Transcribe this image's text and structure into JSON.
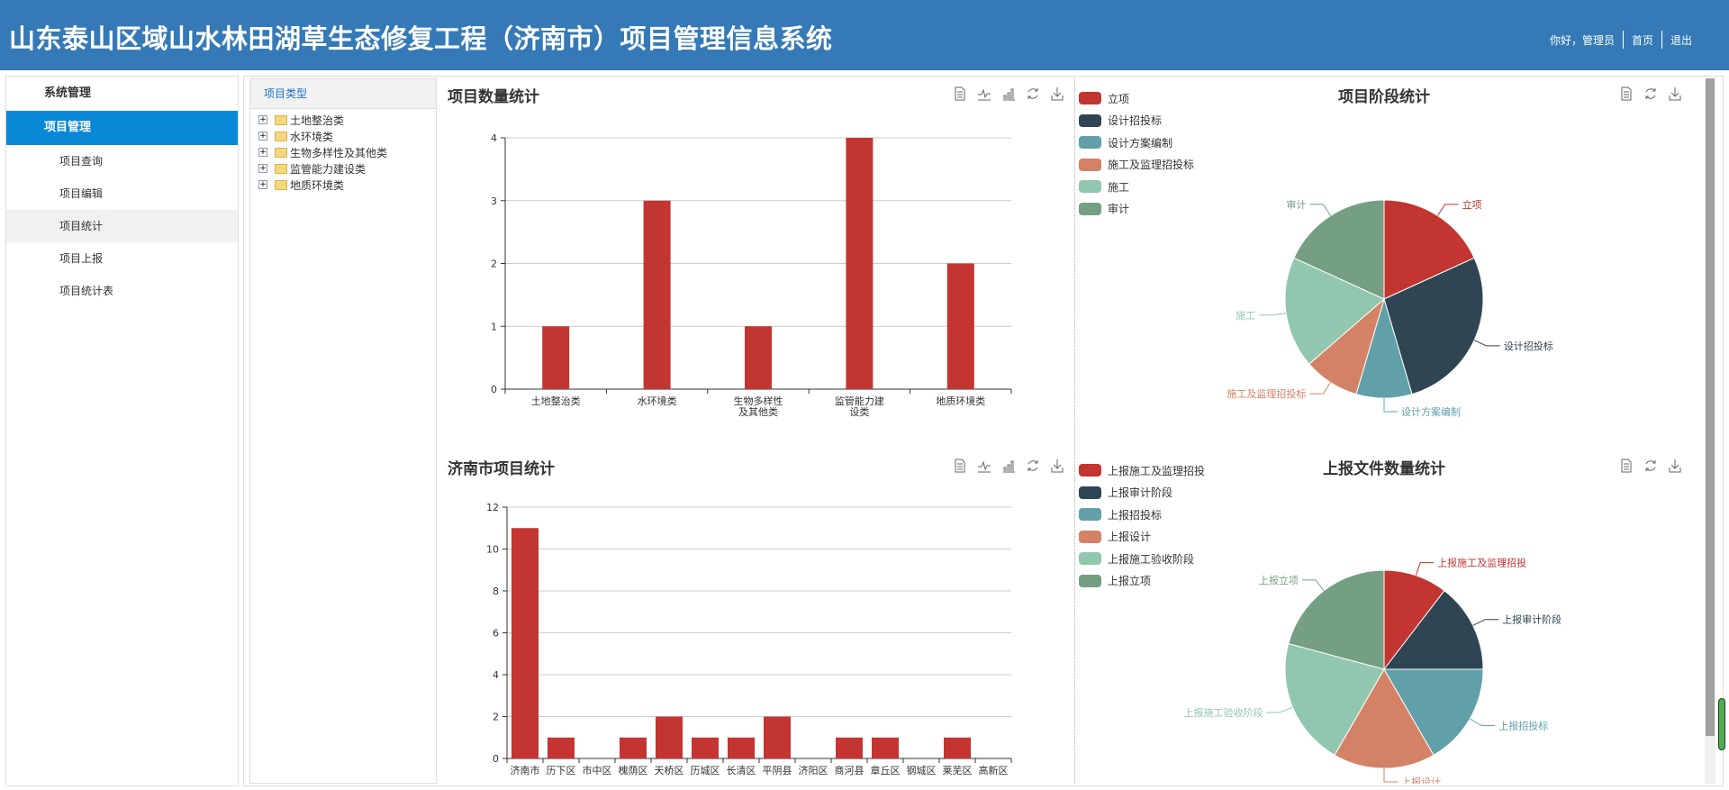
{
  "header": {
    "title": "山东泰山区域山水林田湖草生态修复工程（济南市）项目管理信息系统",
    "greeting": "你好，管理员",
    "home": "首页",
    "logout": "退出"
  },
  "sidebar": {
    "menus": [
      {
        "label": "系统管理"
      },
      {
        "label": "项目管理"
      }
    ],
    "sub_items": [
      {
        "label": "项目查询"
      },
      {
        "label": "项目编辑"
      },
      {
        "label": "项目统计"
      },
      {
        "label": "项目上报"
      },
      {
        "label": "项目统计表"
      }
    ]
  },
  "tree": {
    "title": "项目类型",
    "nodes": [
      "土地整治类",
      "水环境类",
      "生物多样性及其他类",
      "监管能力建设类",
      "地质环境类"
    ]
  },
  "colors": {
    "bar": "#c23531",
    "palette": [
      "#c23531",
      "#2f4554",
      "#61a0a8",
      "#d48265",
      "#91c7ae",
      "#749f83"
    ]
  },
  "toolbox_icons": [
    "data-view-icon",
    "line-chart-icon",
    "bar-chart-icon",
    "restore-icon",
    "save-image-icon"
  ],
  "chart_data": [
    {
      "type": "bar",
      "title": "项目数量统计",
      "categories": [
        "土地整治类",
        "水环境类",
        "生物多样性\n及其他类",
        "监管能力建\n设类",
        "地质环境类"
      ],
      "values": [
        1,
        3,
        1,
        4,
        2
      ],
      "ylim": [
        0,
        4
      ],
      "yticks": [
        0,
        1,
        2,
        3,
        4
      ],
      "grid": true
    },
    {
      "type": "pie",
      "title": "项目阶段统计",
      "legend": "top-left",
      "categories": [
        "立项",
        "设计招投标",
        "设计方案编制",
        "施工及监理招投标",
        "施工",
        "审计"
      ],
      "values": [
        2,
        3,
        1,
        1,
        2,
        2
      ]
    },
    {
      "type": "bar",
      "title": "济南市项目统计",
      "categories": [
        "济南市",
        "历下区",
        "市中区",
        "槐荫区",
        "天桥区",
        "历城区",
        "长清区",
        "平阴县",
        "济阳区",
        "商河县",
        "章丘区",
        "钢城区",
        "莱芜区",
        "高新区"
      ],
      "values": [
        11,
        1,
        0,
        1,
        2,
        1,
        1,
        2,
        0,
        1,
        1,
        0,
        1,
        0
      ],
      "ylim": [
        0,
        12
      ],
      "yticks": [
        0,
        2,
        4,
        6,
        8,
        10,
        12
      ],
      "grid": true
    },
    {
      "type": "pie",
      "title": "上报文件数量统计",
      "legend": "top-left",
      "categories": [
        "上报施工及监理招投",
        "上报审计阶段",
        "上报招投标",
        "上报设计",
        "上报施工验收阶段",
        "上报立项"
      ],
      "values": [
        5,
        7,
        8,
        8,
        10,
        10
      ]
    }
  ]
}
